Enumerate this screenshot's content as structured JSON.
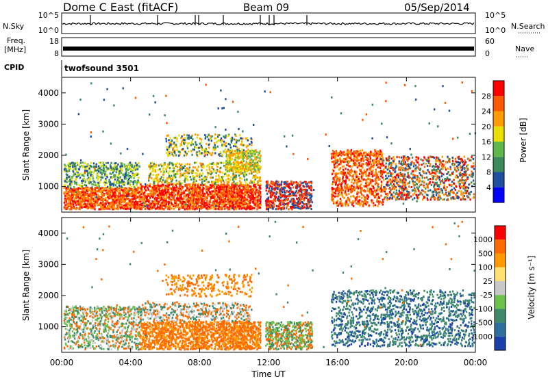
{
  "header": {
    "station": "Dome C East (fitACF)",
    "beam": "Beam 09",
    "date": "05/Sep/2014"
  },
  "top_panels": {
    "nsky": {
      "label": "N.Sky",
      "ticks": [
        "10^5",
        "10^0"
      ],
      "right_ticks": [
        "10^5",
        "10^0"
      ],
      "right_label": "N.Search"
    },
    "freq": {
      "label": "Freq.",
      "unit": "[MHz]",
      "ticks": [
        "18",
        "8"
      ],
      "right_ticks": [
        "60",
        "0"
      ],
      "right_label": "Nave"
    },
    "cpid": {
      "label": "CPID",
      "value": "twofsound 3501"
    }
  },
  "chart_data": [
    {
      "type": "heatmap",
      "name": "power",
      "xlabel": "Time UT",
      "ylabel": "Slant Range [km]",
      "xlim": [
        0,
        24
      ],
      "ylim": [
        180,
        4500
      ],
      "yticks": [
        1000,
        2000,
        3000,
        4000
      ],
      "colorbar": {
        "label": "Power [dB]",
        "ticks": [
          "28",
          "24",
          "20",
          "16",
          "12",
          "8",
          "4"
        ],
        "colors": [
          "#0000ff",
          "#1f4fa0",
          "#3b8a5a",
          "#5fb84a",
          "#e8e000",
          "#ff9a00",
          "#ff5a00",
          "#ff0000"
        ]
      }
    },
    {
      "type": "heatmap",
      "name": "velocity",
      "xlabel": "Time UT",
      "ylabel": "Slant Range [km]",
      "xlim": [
        0,
        24
      ],
      "ylim": [
        180,
        4500
      ],
      "yticks": [
        1000,
        2000,
        3000,
        4000
      ],
      "colorbar": {
        "label": "Velocity [m s⁻¹]",
        "ticks": [
          "1000",
          "500",
          "100",
          "25",
          "-25",
          "-100",
          "-500",
          "-1000"
        ],
        "colors": [
          "#1a3fa8",
          "#2f6f9e",
          "#3e8a6a",
          "#6cc24a",
          "#c8c8c8",
          "#ffe070",
          "#ff9a00",
          "#ff6a00",
          "#ff0000"
        ]
      }
    }
  ],
  "x_ticks": [
    "00:00",
    "04:00",
    "08:00",
    "12:00",
    "16:00",
    "20:00",
    "00:00"
  ],
  "x_label": "Time UT"
}
